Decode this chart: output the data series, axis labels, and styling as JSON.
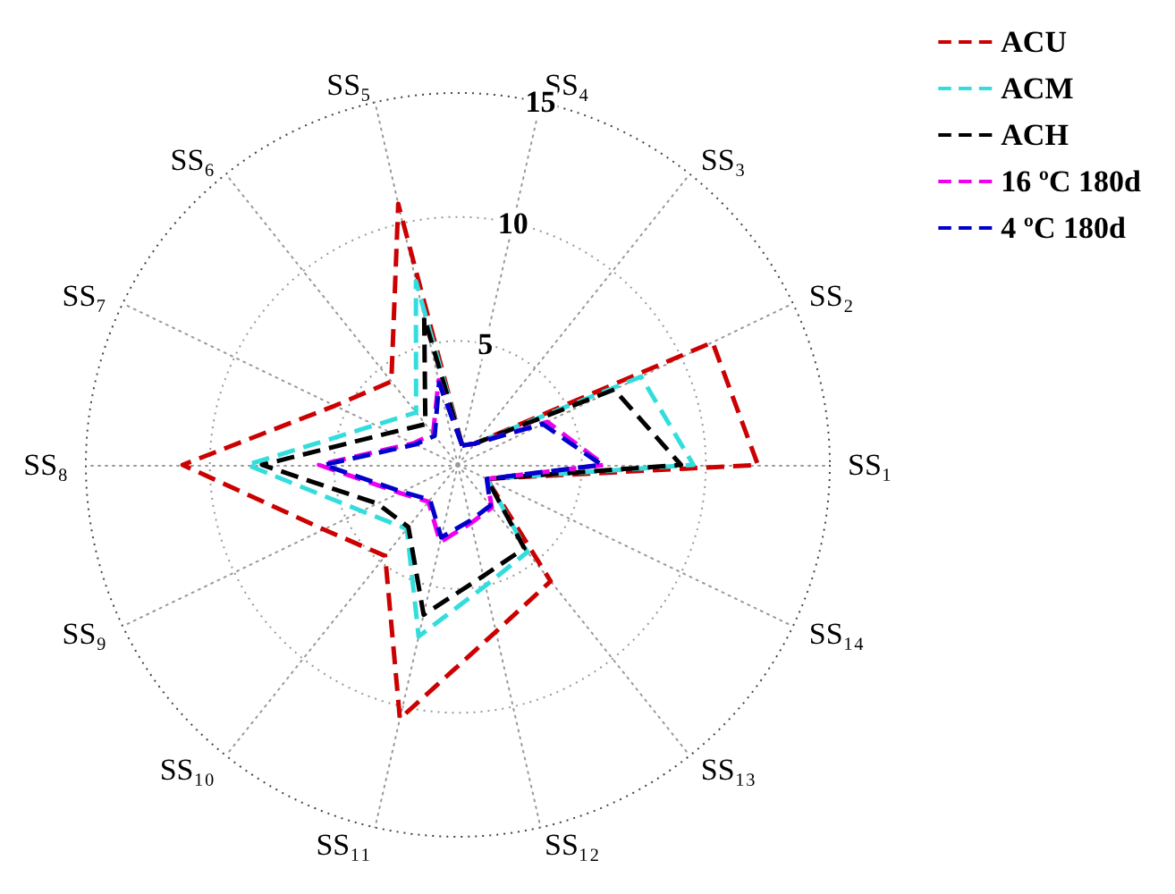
{
  "chart_data": {
    "type": "radar",
    "categories": [
      "SS₄",
      "SS₃",
      "SS₂",
      "SS₁",
      "SS₁₄",
      "SS₁₃",
      "SS₁₂",
      "SS₁₁",
      "SS₁₀",
      "SS₉",
      "SS₈",
      "SS₇",
      "SS₆",
      "SS₅"
    ],
    "ylim": [
      0,
      15
    ],
    "yticks": [
      5,
      10,
      15
    ],
    "grid": true,
    "legend": "top right",
    "line_style": "dashed",
    "series": [
      {
        "name": "ACU",
        "color": "#cc0000",
        "values": [
          0.8,
          1.1,
          11.4,
          12.1,
          1.3,
          6.0,
          6.9,
          10.5,
          4.7,
          6.0,
          11.1,
          5.5,
          4.3,
          10.8
        ]
      },
      {
        "name": "ACM",
        "color": "#33dddd",
        "values": [
          0.8,
          1.1,
          8.2,
          9.5,
          1.3,
          4.5,
          5.0,
          7.1,
          3.3,
          4.3,
          8.5,
          3.7,
          2.7,
          7.6
        ]
      },
      {
        "name": "ACH",
        "color": "#000000",
        "values": [
          0.8,
          1.1,
          7.0,
          9.0,
          1.3,
          4.3,
          4.6,
          6.2,
          3.2,
          3.6,
          7.9,
          3.0,
          2.1,
          6.1
        ]
      },
      {
        "name": "16 ºC 180d",
        "color": "#ee00ee",
        "values": [
          0.8,
          1.1,
          4.0,
          5.9,
          1.3,
          2.2,
          2.4,
          3.2,
          1.9,
          2.6,
          5.6,
          2.0,
          1.6,
          3.5
        ]
      },
      {
        "name": "4 ºC 180d",
        "color": "#0000cc",
        "values": [
          0.8,
          1.1,
          3.8,
          5.8,
          1.3,
          2.1,
          2.3,
          3.0,
          1.8,
          2.5,
          5.4,
          1.9,
          1.5,
          3.4
        ]
      }
    ]
  }
}
